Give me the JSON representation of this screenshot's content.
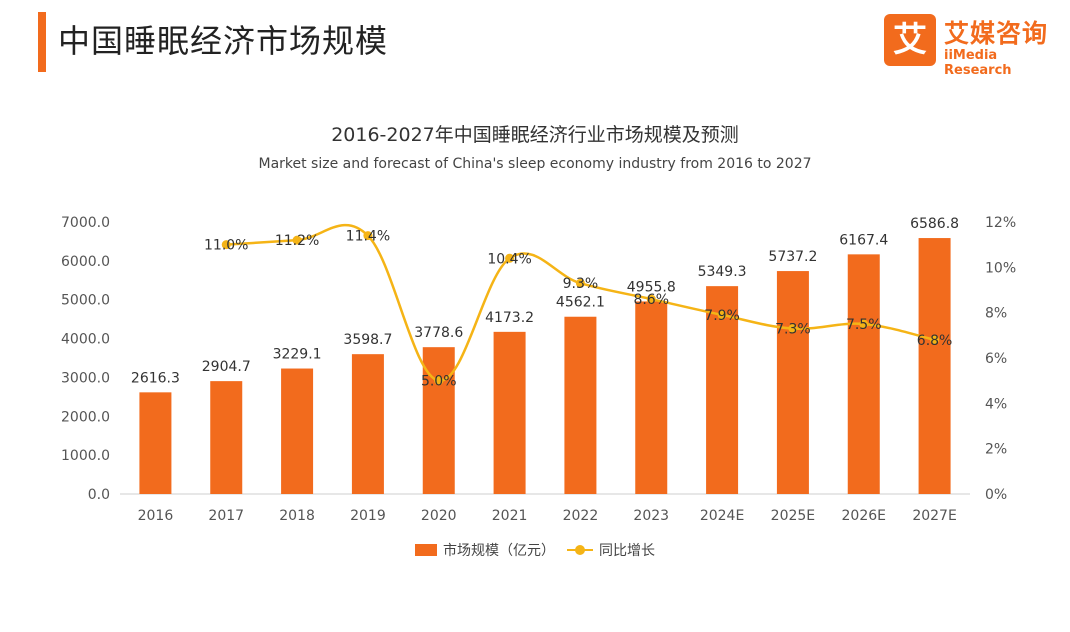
{
  "header": {
    "title": "中国睡眠经济市场规模",
    "logo_mark": "艾",
    "logo_cn": "艾媒咨询",
    "logo_en": "iiMedia Research"
  },
  "chart_data": {
    "type": "bar",
    "title": "2016-2027年中国睡眠经济行业市场规模及预测",
    "subtitle": "Market size and forecast of China's sleep economy industry from 2016 to 2027",
    "categories": [
      "2016",
      "2017",
      "2018",
      "2019",
      "2020",
      "2021",
      "2022",
      "2023",
      "2024E",
      "2025E",
      "2026E",
      "2027E"
    ],
    "series": [
      {
        "name": "市场规模（亿元）",
        "type": "bar",
        "axis": "left",
        "color": "#f26b1d",
        "values": [
          2616.3,
          2904.7,
          3229.1,
          3598.7,
          3778.6,
          4173.2,
          4562.1,
          4955.8,
          5349.3,
          5737.2,
          6167.4,
          6586.8
        ],
        "labels": [
          "2616.3",
          "2904.7",
          "3229.1",
          "3598.7",
          "3778.6",
          "4173.2",
          "4562.1",
          "4955.8",
          "5349.3",
          "5737.2",
          "6167.4",
          "6586.8"
        ]
      },
      {
        "name": "同比增长",
        "type": "line",
        "axis": "right",
        "color": "#f5b416",
        "values": [
          null,
          11.0,
          11.2,
          11.4,
          5.0,
          10.4,
          9.3,
          8.6,
          7.9,
          7.3,
          7.5,
          6.8
        ],
        "labels": [
          "",
          "11.0%",
          "11.2%",
          "11.4%",
          "5.0%",
          "10.4%",
          "9.3%",
          "8.6%",
          "7.9%",
          "7.3%",
          "7.5%",
          "6.8%"
        ]
      }
    ],
    "y_left": {
      "ylim": [
        0,
        7000
      ],
      "ticks": [
        "0.0",
        "1000.0",
        "2000.0",
        "3000.0",
        "4000.0",
        "5000.0",
        "6000.0",
        "7000.0"
      ]
    },
    "y_right": {
      "ylim": [
        0,
        12
      ],
      "ticks": [
        "0%",
        "2%",
        "4%",
        "6%",
        "8%",
        "10%",
        "12%"
      ]
    },
    "grid": false,
    "legend_position": "bottom"
  }
}
